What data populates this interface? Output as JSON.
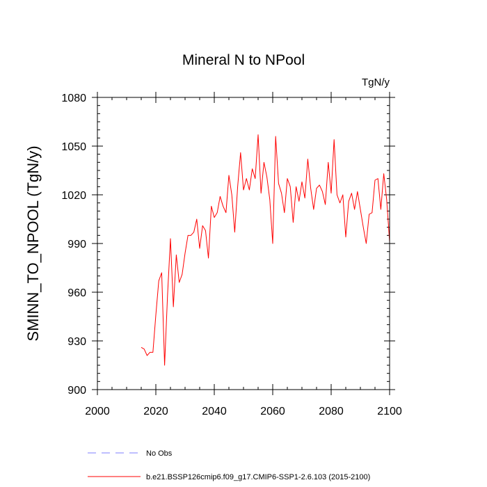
{
  "chart_data": {
    "type": "line",
    "title": "Mineral N to NPool",
    "units": "TgN/y",
    "xlabel": "",
    "ylabel": "SMINN_TO_NPOOL  (TgN/y)",
    "xlim": [
      2000,
      2100
    ],
    "ylim": [
      900,
      1080
    ],
    "xticks": [
      2000,
      2020,
      2040,
      2060,
      2080,
      2100
    ],
    "yticks": [
      900,
      930,
      960,
      990,
      1020,
      1050,
      1080
    ],
    "xtick_labels": [
      "2000",
      "2020",
      "2040",
      "2060",
      "2080",
      "2100"
    ],
    "ytick_labels": [
      "900",
      "930",
      "960",
      "990",
      "1020",
      "1050",
      "1080"
    ],
    "x_minor_step": 5,
    "y_minor_step": 5,
    "grid": false,
    "legend": {
      "placement": "bottom",
      "entries": [
        {
          "label": "No Obs",
          "color": "#7f7fff",
          "style": "dashed"
        },
        {
          "label": "b.e21.BSSP126cmip6.f09_g17.CMIP6-SSP1-2.6.103 (2015-2100)",
          "color": "#ff0000",
          "style": "solid"
        }
      ]
    },
    "series": [
      {
        "name": "b.e21.BSSP126cmip6.f09_g17.CMIP6-SSP1-2.6.103 (2015-2100)",
        "color": "#ff0000",
        "x": [
          2015,
          2016,
          2017,
          2018,
          2019,
          2020,
          2021,
          2022,
          2023,
          2024,
          2025,
          2026,
          2027,
          2028,
          2029,
          2030,
          2031,
          2032,
          2033,
          2034,
          2035,
          2036,
          2037,
          2038,
          2039,
          2040,
          2041,
          2042,
          2043,
          2044,
          2045,
          2046,
          2047,
          2048,
          2049,
          2050,
          2051,
          2052,
          2053,
          2054,
          2055,
          2056,
          2057,
          2058,
          2059,
          2060,
          2061,
          2062,
          2063,
          2064,
          2065,
          2066,
          2067,
          2068,
          2069,
          2070,
          2071,
          2072,
          2073,
          2074,
          2075,
          2076,
          2077,
          2078,
          2079,
          2080,
          2081,
          2082,
          2083,
          2084,
          2085,
          2086,
          2087,
          2088,
          2089,
          2090,
          2091,
          2092,
          2093,
          2094,
          2095,
          2096,
          2097,
          2098,
          2099,
          2100
        ],
        "y": [
          926,
          925,
          921,
          923,
          923,
          946,
          967,
          972,
          915,
          958,
          993,
          951,
          983,
          966,
          971,
          984,
          995,
          995,
          997,
          1005,
          987,
          1001,
          998,
          981,
          1013,
          1006,
          1009,
          1019,
          1013,
          1009,
          1032,
          1020,
          997,
          1025,
          1046,
          1023,
          1030,
          1023,
          1036,
          1030,
          1057,
          1021,
          1040,
          1031,
          1017,
          990,
          1056,
          1027,
          1021,
          1009,
          1030,
          1025,
          1003,
          1025,
          1016,
          1028,
          1018,
          1042,
          1024,
          1011,
          1024,
          1026,
          1022,
          1014,
          1040,
          1021,
          1054,
          1020,
          1015,
          1020,
          994,
          1016,
          1021,
          1011,
          1022,
          1011,
          1000,
          990,
          1008,
          1009,
          1029,
          1030,
          1011,
          1033,
          1017,
          991
        ]
      }
    ]
  }
}
